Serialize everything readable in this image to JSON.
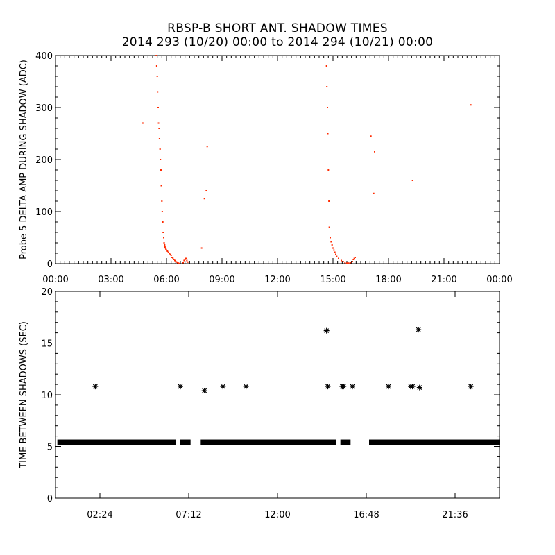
{
  "title": "RBSP-B SHORT ANT. SHADOW TIMES",
  "subtitle": "2014 293 (10/20) 00:00 to 2014 294 (10/21) 00:00",
  "colors": {
    "top_points": "#ff2a00",
    "bottom_points": "#000000",
    "axes": "#000000",
    "background": "#ffffff"
  },
  "chart_data": [
    {
      "type": "scatter",
      "ylabel": "Probe 5 DELTA AMP DURING SHADOW (ADC)",
      "xlabel": "",
      "x_unit": "hours",
      "xlim": [
        0,
        24
      ],
      "ylim": [
        0,
        400
      ],
      "xticks": [
        0,
        3,
        6,
        9,
        12,
        15,
        18,
        21,
        24
      ],
      "xtick_labels": [
        "00:00",
        "03:00",
        "06:00",
        "09:00",
        "12:00",
        "15:00",
        "18:00",
        "21:00",
        "00:00"
      ],
      "yticks": [
        0,
        100,
        200,
        300,
        400
      ],
      "ytick_labels": [
        "0",
        "100",
        "200",
        "300",
        "400"
      ],
      "series": [
        {
          "color": "#ff2a00",
          "x": [
            5.45,
            5.47,
            5.5,
            5.52,
            5.55,
            5.57,
            5.6,
            5.62,
            5.65,
            5.67,
            5.7,
            5.72,
            5.75,
            5.77,
            5.8,
            5.82,
            5.85,
            5.87,
            5.9,
            5.92,
            5.95,
            5.97,
            6.0,
            6.05,
            6.1,
            6.15,
            6.2,
            6.25,
            6.3,
            6.35,
            6.4,
            6.45,
            6.5,
            6.55,
            6.6,
            6.65,
            6.7,
            6.9,
            6.95,
            7.0,
            7.05,
            7.1,
            7.15,
            4.72,
            7.9,
            8.05,
            8.15,
            8.2,
            14.65,
            14.67,
            14.7,
            14.72,
            14.75,
            14.78,
            14.8,
            14.85,
            14.9,
            14.95,
            15.0,
            15.05,
            15.1,
            15.15,
            15.2,
            15.3,
            15.45,
            15.55,
            15.65,
            15.75,
            15.85,
            15.95,
            16.05,
            16.1,
            16.15,
            16.2,
            17.05,
            17.2,
            17.25,
            19.3,
            22.45
          ],
          "y": [
            400,
            380,
            360,
            330,
            300,
            270,
            260,
            240,
            220,
            200,
            180,
            150,
            120,
            100,
            80,
            60,
            50,
            40,
            36,
            32,
            30,
            28,
            26,
            24,
            22,
            20,
            18,
            16,
            12,
            10,
            8,
            6,
            4,
            3,
            2,
            1,
            0,
            2,
            6,
            8,
            10,
            6,
            3,
            270,
            30,
            125,
            140,
            225,
            380,
            340,
            300,
            250,
            180,
            120,
            70,
            50,
            42,
            36,
            30,
            26,
            22,
            18,
            14,
            10,
            6,
            4,
            2,
            1,
            1,
            2,
            4,
            8,
            10,
            12,
            245,
            135,
            215,
            160,
            305
          ]
        }
      ]
    },
    {
      "type": "scatter",
      "ylabel": "TIME BETWEEN SHADOWS (SEC)",
      "xlabel": "",
      "x_unit": "hours",
      "xlim": [
        0,
        24
      ],
      "ylim": [
        0,
        20
      ],
      "xticks": [
        2.4,
        7.2,
        12.0,
        16.8,
        21.6
      ],
      "xtick_labels": [
        "02:24",
        "07:12",
        "12:00",
        "16:48",
        "21:36"
      ],
      "yticks": [
        0,
        5,
        10,
        15,
        20
      ],
      "ytick_labels": [
        "0",
        "5",
        "10",
        "15",
        "20"
      ],
      "baseline_value": 5.4,
      "baseline_segments": [
        [
          0.1,
          6.5
        ],
        [
          6.75,
          7.3
        ],
        [
          7.85,
          15.15
        ],
        [
          15.4,
          15.95
        ],
        [
          16.95,
          24.0
        ]
      ],
      "series": [
        {
          "color": "#000000",
          "x": [
            2.15,
            6.75,
            8.05,
            9.05,
            10.3,
            14.65,
            14.72,
            15.5,
            15.57,
            16.05,
            18.0,
            19.2,
            19.3,
            19.62,
            19.68,
            22.45
          ],
          "y": [
            10.8,
            10.8,
            10.4,
            10.8,
            10.8,
            16.2,
            10.8,
            10.8,
            10.8,
            10.8,
            10.8,
            10.8,
            10.8,
            16.3,
            10.7,
            10.8
          ]
        }
      ]
    }
  ]
}
